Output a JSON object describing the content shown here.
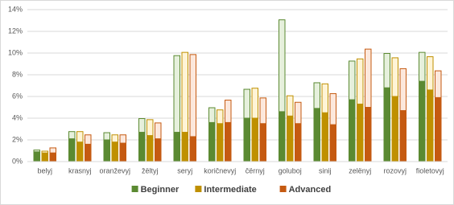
{
  "chart_data": {
    "type": "bar",
    "categories": [
      "belyj",
      "krasnyj",
      "oranževyj",
      "žёltyj",
      "seryj",
      "koričnevyj",
      "čёrnyj",
      "goluboj",
      "sinij",
      "zelёnyj",
      "rozovyj",
      "fioletovyj"
    ],
    "series": [
      {
        "name": "Beginner",
        "color": "#5b8a32",
        "light_color": "#e6f0dc",
        "values": [
          0.9,
          2.1,
          2.0,
          2.7,
          2.7,
          3.6,
          4.0,
          4.6,
          4.9,
          5.7,
          6.8,
          7.4
        ],
        "light_values": [
          0.2,
          0.7,
          0.7,
          1.3,
          7.1,
          1.4,
          2.7,
          8.5,
          2.4,
          3.6,
          3.2,
          2.7
        ]
      },
      {
        "name": "Intermediate",
        "color": "#bf9000",
        "light_color": "#fff4d6",
        "values": [
          0.8,
          1.8,
          1.8,
          2.4,
          2.7,
          3.5,
          4.0,
          4.2,
          4.5,
          5.3,
          6.0,
          6.6
        ],
        "light_values": [
          0.2,
          1.0,
          0.7,
          1.5,
          7.4,
          1.3,
          2.8,
          1.9,
          2.7,
          4.2,
          3.6,
          3.1
        ]
      },
      {
        "name": "Advanced",
        "color": "#c55a11",
        "light_color": "#fce8dc",
        "values": [
          0.8,
          1.6,
          1.7,
          2.1,
          2.3,
          3.6,
          3.5,
          3.5,
          3.4,
          5.0,
          4.7,
          5.9
        ],
        "light_values": [
          0.5,
          0.9,
          0.8,
          1.5,
          7.6,
          2.1,
          2.4,
          2.0,
          2.9,
          5.4,
          3.9,
          2.5
        ]
      }
    ],
    "ylim": [
      0,
      14
    ],
    "yticks": [
      {
        "value": 0,
        "label": "0%"
      },
      {
        "value": 2,
        "label": "2%"
      },
      {
        "value": 4,
        "label": "4%"
      },
      {
        "value": 6,
        "label": "6%"
      },
      {
        "value": 8,
        "label": "8%"
      },
      {
        "value": 10,
        "label": "10%"
      },
      {
        "value": 12,
        "label": "12%"
      },
      {
        "value": 14,
        "label": "14%"
      }
    ],
    "grid": true,
    "legend": "bottom"
  }
}
